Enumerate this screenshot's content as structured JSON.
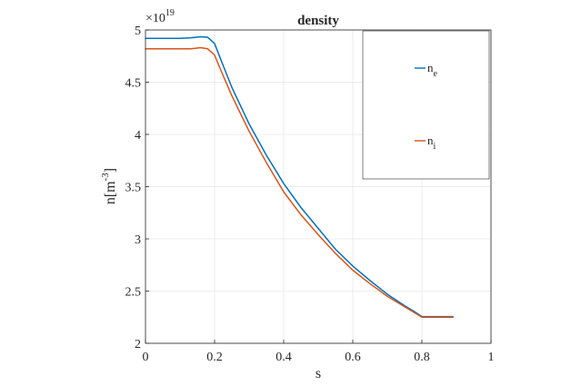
{
  "chart_data": {
    "type": "line",
    "title": "density",
    "xlabel": "s",
    "ylabel_base": "n[m",
    "ylabel_sup": "-3",
    "ylabel_end": "]",
    "y_multiplier_base": "×10",
    "y_multiplier_exp": "19",
    "xlim": [
      0,
      1
    ],
    "ylim": [
      2,
      5
    ],
    "xticks": [
      0,
      0.2,
      0.4,
      0.6,
      0.8,
      1
    ],
    "xtick_labels": [
      "0",
      "0.2",
      "0.4",
      "0.6",
      "0.8",
      "1"
    ],
    "yticks": [
      2,
      2.5,
      3,
      3.5,
      4,
      4.5,
      5
    ],
    "ytick_labels": [
      "2",
      "2.5",
      "3",
      "3.5",
      "4",
      "4.5",
      "5"
    ],
    "grid": true,
    "legend_placement": "top-right",
    "series": [
      {
        "name_base": "n",
        "name_sub": "e",
        "color": "#0072BD",
        "x": [
          0,
          0.1,
          0.13,
          0.16,
          0.18,
          0.2,
          0.22,
          0.25,
          0.3,
          0.35,
          0.4,
          0.45,
          0.5,
          0.55,
          0.6,
          0.65,
          0.7,
          0.75,
          0.78,
          0.8,
          0.85,
          0.89
        ],
        "y": [
          4.92,
          4.92,
          4.925,
          4.935,
          4.93,
          4.87,
          4.7,
          4.45,
          4.1,
          3.8,
          3.53,
          3.3,
          3.1,
          2.9,
          2.74,
          2.6,
          2.47,
          2.36,
          2.3,
          2.255,
          2.255,
          2.255
        ]
      },
      {
        "name_base": "n",
        "name_sub": "i",
        "color": "#D95319",
        "x": [
          0,
          0.1,
          0.13,
          0.16,
          0.18,
          0.2,
          0.22,
          0.25,
          0.3,
          0.35,
          0.4,
          0.45,
          0.5,
          0.55,
          0.6,
          0.65,
          0.7,
          0.75,
          0.78,
          0.8,
          0.85,
          0.89
        ],
        "y": [
          4.82,
          4.82,
          4.82,
          4.83,
          4.82,
          4.76,
          4.6,
          4.37,
          4.03,
          3.73,
          3.45,
          3.23,
          3.04,
          2.86,
          2.7,
          2.57,
          2.45,
          2.35,
          2.29,
          2.25,
          2.25,
          2.25
        ]
      }
    ]
  }
}
